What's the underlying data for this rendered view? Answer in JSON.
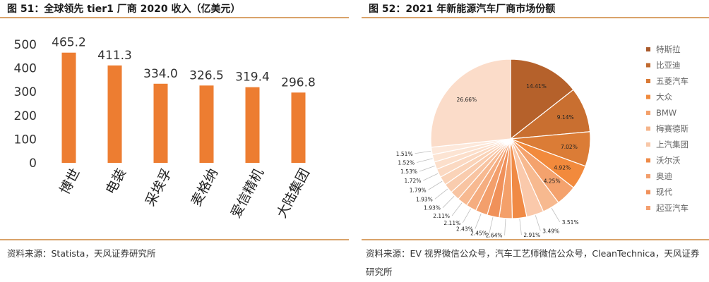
{
  "left": {
    "title": "图 51：全球领先 tier1 厂商 2020 收入（亿美元）",
    "source": "资料来源：Statista，天风证券研究所"
  },
  "right": {
    "title": "图 52：2021 年新能源汽车厂商市场份额",
    "source": "资料来源：EV 视界微信公众号，汽车工艺师微信公众号，CleanTechnica，天风证券研究所"
  },
  "chart_data": [
    {
      "type": "bar",
      "categories": [
        "博世",
        "电装",
        "采埃孚",
        "麦格纳",
        "爱信精机",
        "大陆集团"
      ],
      "values": [
        465.2,
        411.3,
        334.0,
        326.5,
        319.4,
        296.8
      ],
      "value_labels": [
        "465.2",
        "411.3",
        "334.0",
        "326.5",
        "319.4",
        "296.8"
      ],
      "yticks": [
        "0",
        "100",
        "200",
        "300",
        "400",
        "500"
      ],
      "ylim": [
        0,
        500
      ],
      "grid": false,
      "colors": {
        "bar": "#ed7d31"
      }
    },
    {
      "type": "pie",
      "values": [
        14.41,
        9.14,
        7.02,
        4.92,
        4.25,
        3.51,
        3.49,
        2.91,
        2.64,
        2.45,
        2.43,
        2.11,
        2.11,
        1.93,
        1.93,
        1.79,
        1.72,
        1.53,
        1.52,
        1.51,
        26.66
      ],
      "value_labels": [
        "14.41%",
        "9.14%",
        "7.02%",
        "4.92%",
        "4.25%",
        "3.51%",
        "3.49%",
        "2.91%",
        "2.64%",
        "2.45%",
        "2.43%",
        "2.11%",
        "2.11%",
        "1.93%",
        "1.93%",
        "1.79%",
        "1.72%",
        "1.53%",
        "1.52%",
        "1.51%",
        "26.66%"
      ],
      "legend": [
        "特斯拉",
        "比亚迪",
        "五菱汽车",
        "大众",
        "BMW",
        "梅赛德斯",
        "上汽集团",
        "沃尔沃",
        "奥迪",
        "现代",
        "起亚汽车"
      ],
      "legend_placement": "right",
      "colors": [
        "#b5612b",
        "#c96f30",
        "#db7c36",
        "#f28a3c",
        "#f4a26d",
        "#f7b98f",
        "#fac9ab",
        "#f08a45",
        "#f4a06a",
        "#f0915a",
        "#f39f6c",
        "#f5ad80",
        "#f7b991",
        "#f8c4a2",
        "#f9ccae",
        "#fad3b8",
        "#fbd9c2",
        "#fcdfcb",
        "#fce4d3",
        "#fde8da",
        "#fbdcc9"
      ],
      "legend_colors": [
        "#a9592a",
        "#c0692e",
        "#d97a35",
        "#f08a3c",
        "#f3a06a",
        "#f5b48a",
        "#f8c7a8",
        "#ee8a47",
        "#f29e6b",
        "#f0905a",
        "#f4a070"
      ]
    }
  ]
}
